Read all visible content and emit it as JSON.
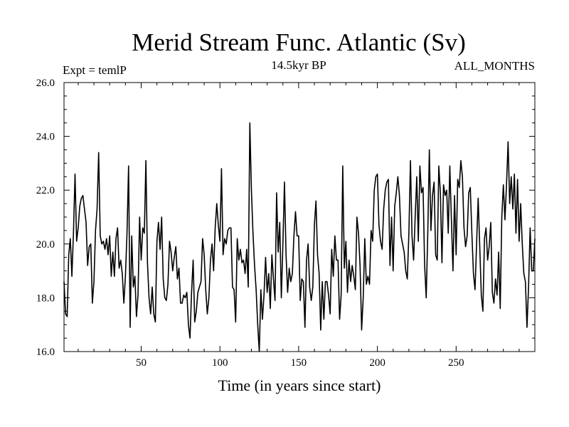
{
  "chart_data": {
    "type": "line",
    "title": "Merid Stream Func. Atlantic (Sv)",
    "subtitle_left": "Expt = temlP",
    "subtitle_center": "14.5kyr BP",
    "subtitle_right": "ALL_MONTHS",
    "xlabel": "Time (in years since start)",
    "ylabel": "",
    "xlim": [
      1,
      300
    ],
    "ylim": [
      16.0,
      26.0
    ],
    "xticks": [
      50,
      100,
      150,
      200,
      250
    ],
    "xtick_labels": [
      "50",
      "100",
      "150",
      "200",
      "250"
    ],
    "yticks": [
      16.0,
      18.0,
      20.0,
      22.0,
      24.0,
      26.0
    ],
    "ytick_labels": [
      "16.0",
      "18.0",
      "20.0",
      "22.0",
      "24.0",
      "26.0"
    ],
    "x_start": 1,
    "x_step": 1,
    "series": [
      {
        "name": "Merid Stream Func. Atlantic",
        "color": "#000000",
        "values": [
          18.6,
          17.4,
          17.3,
          19.6,
          20.2,
          18.8,
          20.4,
          22.6,
          20.1,
          20.6,
          21.4,
          21.7,
          21.8,
          21.3,
          20.8,
          19.2,
          19.9,
          20.0,
          17.8,
          18.6,
          20.5,
          21.3,
          23.4,
          20.3,
          20.0,
          20.1,
          19.8,
          20.2,
          19.6,
          20.3,
          18.8,
          19.7,
          18.8,
          20.2,
          20.6,
          19.1,
          19.4,
          18.9,
          17.8,
          18.8,
          20.4,
          22.9,
          16.9,
          20.3,
          18.4,
          18.8,
          17.3,
          18.1,
          21.0,
          19.4,
          20.6,
          20.4,
          23.1,
          19.3,
          18.0,
          17.4,
          18.4,
          17.4,
          17.1,
          20.1,
          20.8,
          19.8,
          21.0,
          18.7,
          18.0,
          17.9,
          18.5,
          20.1,
          19.7,
          19.0,
          19.5,
          19.9,
          18.7,
          19.1,
          17.8,
          17.8,
          18.1,
          18.0,
          18.2,
          17.0,
          16.5,
          18.2,
          19.4,
          17.1,
          17.5,
          18.2,
          18.4,
          18.6,
          20.2,
          19.6,
          18.3,
          17.4,
          18.0,
          19.4,
          20.0,
          19.0,
          20.6,
          21.5,
          20.7,
          20.1,
          22.8,
          19.6,
          20.2,
          20.0,
          20.5,
          20.6,
          20.6,
          18.4,
          18.3,
          17.1,
          20.2,
          19.4,
          19.8,
          19.3,
          19.4,
          18.9,
          19.8,
          18.4,
          24.5,
          22.0,
          20.4,
          19.2,
          18.3,
          17.0,
          16.0,
          18.3,
          17.2,
          18.1,
          19.5,
          18.2,
          18.9,
          17.6,
          19.6,
          18.7,
          17.9,
          21.9,
          19.7,
          20.8,
          18.0,
          20.0,
          22.3,
          19.6,
          18.2,
          19.1,
          18.6,
          18.9,
          20.3,
          21.2,
          20.3,
          20.3,
          17.9,
          18.7,
          18.6,
          16.9,
          19.4,
          20.0,
          18.4,
          17.9,
          18.4,
          20.7,
          21.6,
          19.6,
          18.9,
          16.8,
          18.6,
          17.2,
          18.6,
          18.6,
          18.1,
          17.4,
          19.8,
          18.8,
          20.3,
          19.4,
          19.4,
          17.2,
          18.1,
          22.9,
          19.1,
          20.1,
          18.2,
          19.4,
          18.6,
          19.2,
          18.8,
          18.3,
          21.0,
          20.4,
          19.2,
          16.8,
          18.0,
          20.2,
          18.5,
          18.8,
          18.5,
          20.5,
          20.1,
          22.0,
          22.5,
          22.6,
          20.7,
          20.1,
          19.8,
          21.3,
          22.0,
          22.3,
          22.4,
          19.2,
          21.0,
          19.0,
          21.4,
          21.9,
          22.5,
          21.8,
          20.3,
          20.0,
          19.7,
          19.0,
          18.7,
          20.4,
          23.1,
          20.3,
          19.4,
          21.0,
          22.5,
          20.1,
          22.9,
          21.9,
          22.1,
          19.2,
          18.0,
          20.4,
          23.5,
          20.5,
          21.8,
          22.3,
          19.6,
          19.4,
          22.9,
          21.9,
          19.3,
          22.2,
          21.8,
          22.0,
          20.4,
          22.9,
          20.9,
          19.0,
          21.8,
          19.6,
          22.4,
          22.1,
          23.1,
          22.5,
          20.6,
          19.9,
          20.3,
          21.9,
          22.1,
          20.4,
          18.9,
          18.3,
          20.0,
          21.7,
          19.9,
          18.1,
          17.5,
          20.2,
          20.6,
          19.4,
          19.9,
          20.8,
          18.2,
          17.8,
          18.7,
          18.1,
          19.7,
          17.6,
          21.0,
          22.2,
          20.9,
          22.2,
          23.8,
          21.5,
          22.5,
          21.3,
          22.6,
          20.4,
          22.4,
          20.1,
          21.5,
          20.0,
          18.9,
          18.6,
          16.9,
          18.4,
          20.6,
          19.0,
          19.0,
          20.2
        ]
      }
    ]
  }
}
